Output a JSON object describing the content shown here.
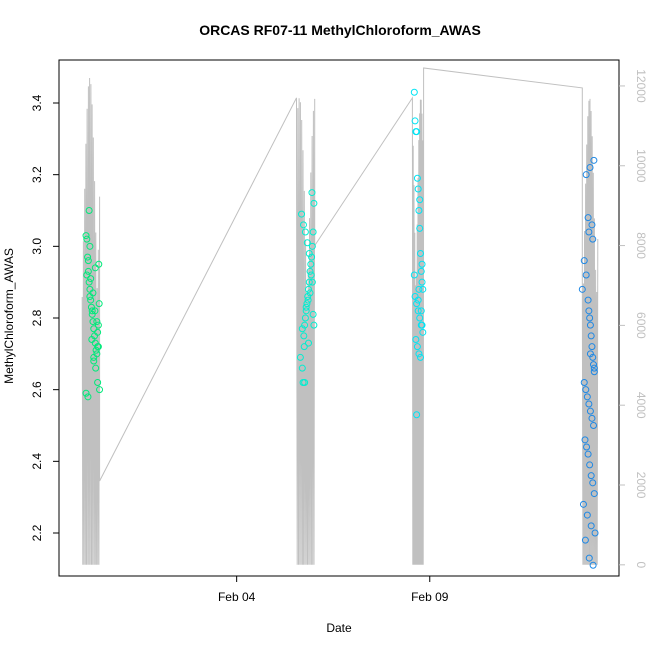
{
  "chart_data": {
    "type": "scatter",
    "title": "ORCAS RF07-11 MethylChloroform_AWAS",
    "xlabel": "Date",
    "ylabel": "MethylChloroform_AWAS",
    "x_ticks": [
      {
        "day": 4,
        "label": "Feb 04"
      },
      {
        "day": 9,
        "label": "Feb 09"
      }
    ],
    "y_ticks": [
      2.2,
      2.4,
      2.6,
      2.8,
      3.0,
      3.2,
      3.4
    ],
    "y2_ticks": [
      0,
      2000,
      4000,
      6000,
      8000,
      10000,
      12000
    ],
    "xlim_days": [
      -0.6,
      13.9
    ],
    "ylim": [
      2.08,
      3.52
    ],
    "y2lim": [
      -280,
      12650
    ],
    "axis_color_right": "#c0c0c0",
    "line_color": "#c0c0c0",
    "grid": false,
    "series": [
      {
        "color": "#00e97a",
        "x": [
          0.1,
          0.12,
          0.14,
          0.16,
          0.18,
          0.2,
          0.22,
          0.24,
          0.26,
          0.28,
          0.3,
          0.32,
          0.34,
          0.36,
          0.38,
          0.4,
          0.42,
          0.44,
          0.12,
          0.16,
          0.2,
          0.25,
          0.3,
          0.35,
          0.4,
          0.45,
          0.15,
          0.22,
          0.28,
          0.33,
          0.38,
          0.43,
          0.1,
          0.2,
          0.3,
          0.4,
          0.18,
          0.26,
          0.34,
          0.42
        ],
        "y": [
          3.03,
          3.02,
          2.97,
          2.93,
          2.9,
          2.88,
          2.85,
          2.83,
          2.81,
          2.79,
          2.77,
          2.75,
          2.73,
          2.71,
          2.7,
          2.72,
          2.78,
          2.84,
          2.92,
          2.96,
          2.86,
          2.74,
          2.69,
          2.66,
          2.62,
          2.6,
          2.58,
          2.91,
          2.87,
          2.82,
          2.79,
          2.95,
          2.59,
          3.0,
          2.68,
          2.76,
          3.1,
          2.82,
          2.94,
          2.72
        ]
      },
      {
        "color": "#00eed0",
        "x": [
          5.65,
          5.7,
          5.72,
          5.74,
          5.76,
          5.78,
          5.8,
          5.82,
          5.84,
          5.86,
          5.88,
          5.9,
          5.92,
          5.94,
          5.96,
          5.98,
          6.0,
          5.7,
          5.75,
          5.8,
          5.85,
          5.9,
          5.95,
          6.0,
          5.68,
          5.73,
          5.78,
          5.83,
          5.88,
          5.93,
          5.98,
          5.76,
          5.86,
          5.96
        ],
        "y": [
          2.69,
          2.66,
          2.62,
          2.75,
          2.78,
          2.8,
          2.82,
          2.84,
          2.86,
          2.88,
          2.9,
          2.93,
          2.95,
          2.97,
          3.0,
          3.04,
          2.78,
          2.77,
          2.72,
          2.83,
          2.85,
          2.87,
          3.15,
          3.12,
          3.09,
          3.06,
          3.04,
          3.01,
          2.98,
          2.92,
          2.81,
          2.62,
          2.73,
          2.9
        ]
      },
      {
        "color": "#00e4f4",
        "x": [
          8.6,
          8.62,
          8.64,
          8.66,
          8.68,
          8.7,
          8.72,
          8.74,
          8.76,
          8.78,
          8.8,
          8.82,
          8.62,
          8.66,
          8.7,
          8.74,
          8.78,
          8.82,
          8.64,
          8.68,
          8.72,
          8.76,
          8.8,
          8.6,
          8.7,
          8.8,
          8.66,
          8.74,
          8.78,
          8.72
        ],
        "y": [
          3.43,
          3.35,
          3.32,
          3.32,
          3.19,
          3.16,
          3.1,
          3.05,
          2.98,
          2.93,
          2.9,
          2.88,
          2.86,
          2.84,
          2.82,
          2.8,
          2.78,
          2.76,
          2.74,
          2.72,
          2.7,
          2.69,
          2.95,
          2.92,
          2.85,
          2.78,
          2.53,
          3.13,
          2.82,
          2.88
        ]
      },
      {
        "color": "#1e88e5",
        "x": [
          12.95,
          13.0,
          13.05,
          13.1,
          13.12,
          13.14,
          13.16,
          13.18,
          13.2,
          13.22,
          13.24,
          13.26,
          13.0,
          13.04,
          13.08,
          13.12,
          13.16,
          13.2,
          13.24,
          13.02,
          13.06,
          13.1,
          13.14,
          13.18,
          13.22,
          13.26,
          12.98,
          13.08,
          13.18,
          13.28,
          13.03,
          13.13,
          13.23,
          13.05,
          13.15,
          13.25,
          13.1,
          13.2,
          13.12,
          13.22,
          13.16,
          13.26
        ],
        "y": [
          2.88,
          2.96,
          2.92,
          2.85,
          2.82,
          2.8,
          2.78,
          2.75,
          2.72,
          2.69,
          2.67,
          2.65,
          2.62,
          2.6,
          2.58,
          2.56,
          2.54,
          2.52,
          2.5,
          2.46,
          2.44,
          2.42,
          2.39,
          2.36,
          2.34,
          2.31,
          2.28,
          2.25,
          2.22,
          2.2,
          2.18,
          2.13,
          2.11,
          3.2,
          3.22,
          3.24,
          3.08,
          3.06,
          3.04,
          3.02,
          2.7,
          2.66
        ]
      }
    ],
    "altitude_line": {
      "segments": [
        {
          "start": 0.0,
          "end": 0.45,
          "ymin": 0,
          "ymax": 12200
        },
        {
          "start": 5.55,
          "end": 6.02,
          "ymin": 0,
          "ymax": 11700
        },
        {
          "start": 8.55,
          "end": 8.84,
          "ymin": 0,
          "ymax": 11700
        },
        {
          "start": 12.95,
          "end": 13.35,
          "ymin": 0,
          "ymax": 11700
        }
      ],
      "ferries": [
        {
          "x0": 0.45,
          "y0": 2100,
          "x1": 5.55,
          "y1": 11700
        },
        {
          "x0": 6.02,
          "y0": 8000,
          "x1": 8.55,
          "y1": 11700
        },
        {
          "x0": 8.84,
          "y0": 12450,
          "x1": 12.95,
          "y1": 11950
        }
      ]
    }
  }
}
